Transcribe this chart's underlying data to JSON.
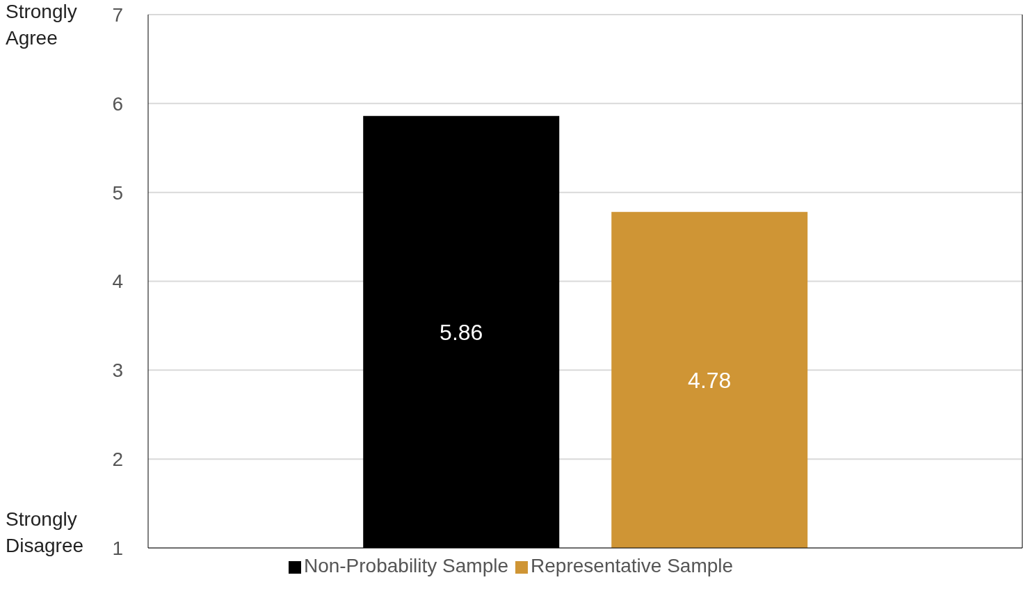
{
  "chart_data": {
    "type": "bar",
    "categories": [
      null
    ],
    "series": [
      {
        "name": "Non-Probability Sample",
        "color": "#000000",
        "values": [
          5.86
        ]
      },
      {
        "name": "Representative Sample",
        "color": "#cf9535",
        "values": [
          4.78
        ]
      }
    ],
    "ylim": [
      1,
      7
    ],
    "yticks": [
      1,
      2,
      3,
      4,
      5,
      6,
      7
    ],
    "grid": "y",
    "legend": "bottom",
    "data_labels": true,
    "annotations": [
      "Strongly Agree",
      "Strongly Disagree"
    ]
  }
}
